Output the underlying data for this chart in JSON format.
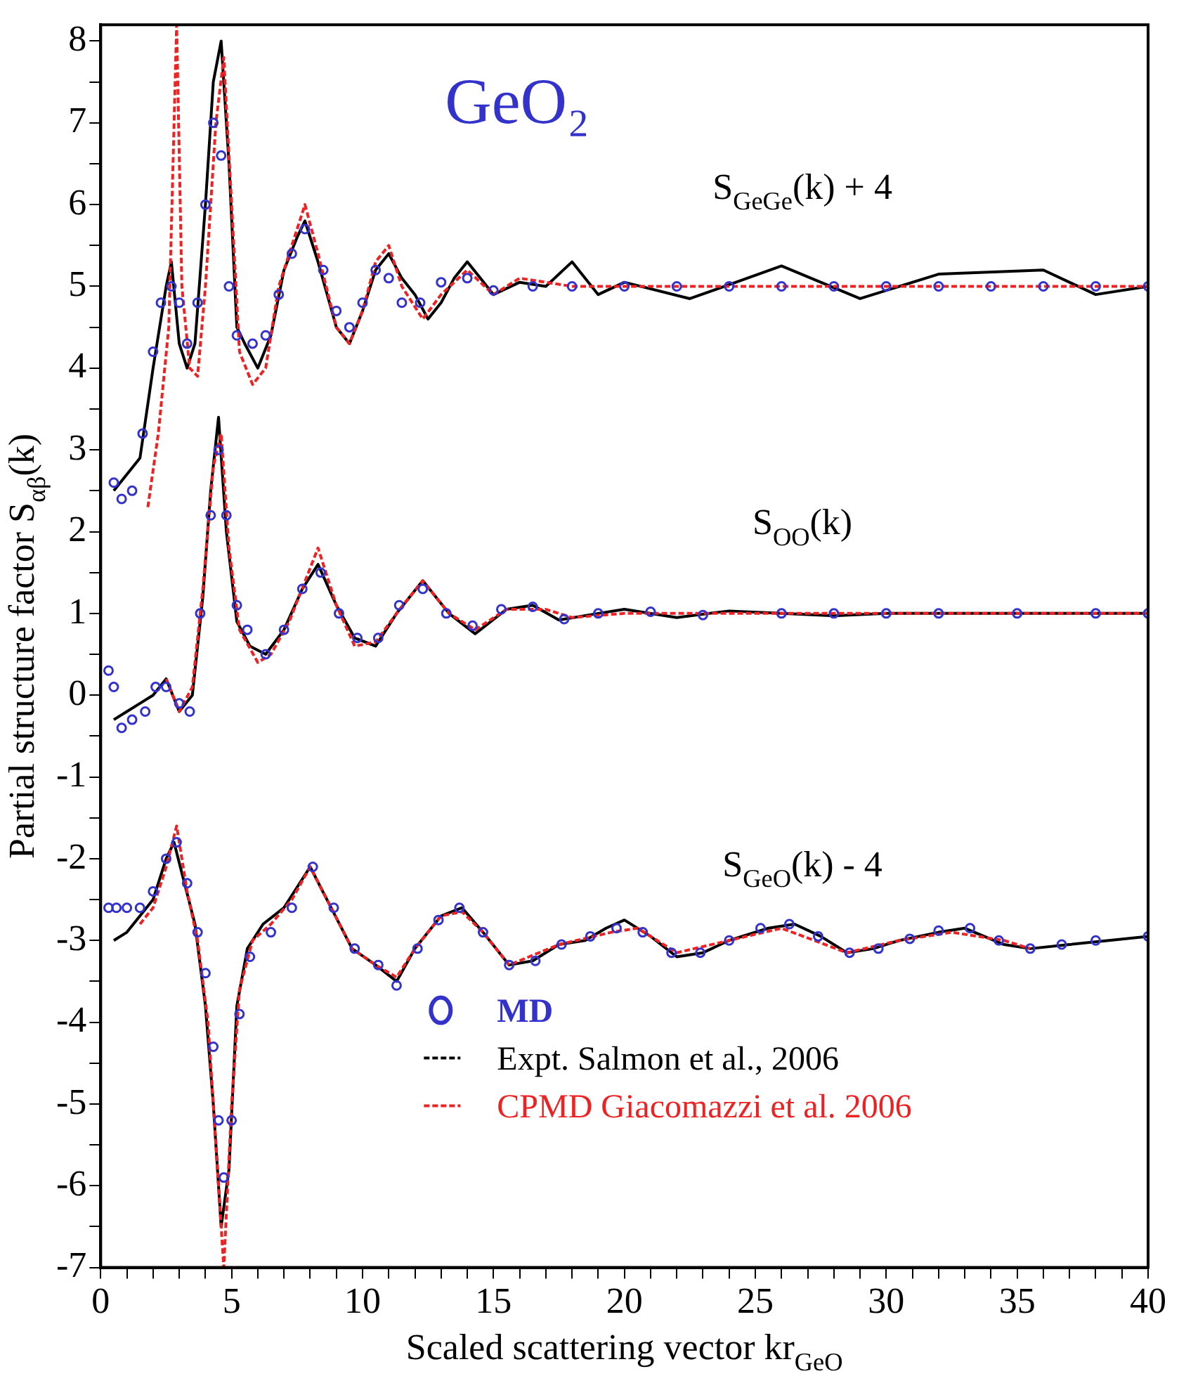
{
  "chart_data": {
    "type": "line",
    "title": "GeO₂",
    "xlabel": "Scaled scattering vector kr$_{GeO}$",
    "ylabel": "Partial structure factor S$_{αβ}$(k)",
    "xlim": [
      0,
      40
    ],
    "ylim": [
      -7,
      8.2
    ],
    "xticks": [
      0,
      {
        "value": 1,
        "label": null
      },
      {
        "value": 2,
        "label": null
      },
      {
        "value": 3,
        "label": null
      },
      {
        "value": 4,
        "label": null
      },
      5,
      {
        "value": 6,
        "label": null
      },
      {
        "value": 7,
        "label": null
      },
      {
        "value": 8,
        "label": null
      },
      {
        "value": 9,
        "label": null
      },
      10,
      {
        "value": 11,
        "label": null
      },
      {
        "value": 12,
        "label": null
      },
      {
        "value": 13,
        "label": null
      },
      {
        "value": 14,
        "label": null
      },
      15,
      {
        "value": 16,
        "label": null
      },
      {
        "value": 17,
        "label": null
      },
      {
        "value": 18,
        "label": null
      },
      {
        "value": 19,
        "label": null
      },
      20,
      {
        "value": 21,
        "label": null
      },
      {
        "value": 22,
        "label": null
      },
      {
        "value": 23,
        "label": null
      },
      {
        "value": 24,
        "label": null
      },
      25,
      {
        "value": 26,
        "label": null
      },
      {
        "value": 27,
        "label": null
      },
      {
        "value": 28,
        "label": null
      },
      {
        "value": 29,
        "label": null
      },
      30,
      {
        "value": 31,
        "label": null
      },
      {
        "value": 32,
        "label": null
      },
      {
        "value": 33,
        "label": null
      },
      {
        "value": 34,
        "label": null
      },
      35,
      {
        "value": 36,
        "label": null
      },
      {
        "value": 37,
        "label": null
      },
      {
        "value": 38,
        "label": null
      },
      {
        "value": 39,
        "label": null
      },
      40
    ],
    "yticks": [
      -7,
      {
        "value": -6.5,
        "label": null
      },
      -6,
      {
        "value": -5.5,
        "label": null
      },
      -5,
      {
        "value": -4.5,
        "label": null
      },
      -4,
      {
        "value": -3.5,
        "label": null
      },
      -3,
      {
        "value": -2.5,
        "label": null
      },
      -2,
      {
        "value": -1.5,
        "label": null
      },
      -1,
      {
        "value": -0.5,
        "label": null
      },
      0,
      {
        "value": 0.5,
        "label": null
      },
      1,
      {
        "value": 1.5,
        "label": null
      },
      2,
      {
        "value": 2.5,
        "label": null
      },
      3,
      {
        "value": 3.5,
        "label": null
      },
      4,
      {
        "value": 4.5,
        "label": null
      },
      5,
      {
        "value": 5.5,
        "label": null
      },
      6,
      {
        "value": 6.5,
        "label": null
      },
      7,
      {
        "value": 7.5,
        "label": null
      },
      8
    ],
    "grid": false,
    "legend": "bottom",
    "annotations": [
      "S$_{GeGe}$(k) + 4",
      "S$_{OO}$(k)",
      "S$_{GeO}$(k) - 4"
    ],
    "series": [
      {
        "name": "MD",
        "type": "scatter",
        "marker": "circle",
        "color": "#3333cc",
        "x": [
          0.5,
          0.8,
          1.2,
          1.6,
          2.0,
          2.3,
          2.7,
          3.0,
          3.3,
          3.7,
          4.0,
          4.3,
          4.6,
          4.9,
          5.2,
          5.8,
          6.3,
          6.8,
          7.3,
          7.8,
          8.5,
          9.0,
          9.5,
          10,
          10.5,
          11,
          11.5,
          12.2,
          13,
          14,
          15,
          16.5,
          18,
          20,
          22,
          24,
          26,
          28,
          30,
          32,
          34,
          36,
          38,
          40
        ],
        "values": [
          2.6,
          2.4,
          2.5,
          3.2,
          4.2,
          4.8,
          5.0,
          4.8,
          4.3,
          4.8,
          6.0,
          7.0,
          6.6,
          5.0,
          4.4,
          4.3,
          4.4,
          4.9,
          5.4,
          5.7,
          5.2,
          4.7,
          4.5,
          4.8,
          5.2,
          5.1,
          4.8,
          4.8,
          5.05,
          5.1,
          4.95,
          5.0,
          5.0,
          5.0,
          5.0,
          5.0,
          5.0,
          5.0,
          5.0,
          5.0,
          5.0,
          5.0,
          5.0,
          5.0
        ]
      },
      {
        "name": "Expt. Salmon et al., 2006",
        "type": "line",
        "line_style": "solid",
        "color": "#000000",
        "x": [
          0.5,
          1,
          1.5,
          2,
          2.5,
          2.7,
          3.0,
          3.3,
          3.6,
          4.0,
          4.3,
          4.6,
          4.9,
          5.2,
          5.5,
          6.0,
          6.5,
          7.0,
          7.5,
          7.8,
          8.3,
          9.0,
          9.5,
          10,
          10.5,
          11,
          11.5,
          12,
          12.5,
          13,
          13.5,
          14,
          14.5,
          15,
          16,
          17,
          18,
          19,
          20,
          22.5,
          26,
          29,
          32,
          36,
          38,
          40
        ],
        "values": [
          2.5,
          2.7,
          2.9,
          4.0,
          5.0,
          5.3,
          4.3,
          4.0,
          4.3,
          6.0,
          7.5,
          8.0,
          6.5,
          4.5,
          4.3,
          4.0,
          4.4,
          5.2,
          5.6,
          5.8,
          5.3,
          4.5,
          4.3,
          4.7,
          5.2,
          5.4,
          5.1,
          4.9,
          4.6,
          4.8,
          5.1,
          5.3,
          5.1,
          4.9,
          5.05,
          5.0,
          5.3,
          4.9,
          5.05,
          4.85,
          5.25,
          4.85,
          5.15,
          5.2,
          4.9,
          5.0
        ]
      },
      {
        "name": "CPMD Giacomazzi et al. 2006",
        "type": "line",
        "line_style": "dashed",
        "color": "#ee2222",
        "x": [
          1.8,
          2.2,
          2.6,
          2.9,
          3.1,
          3.4,
          3.7,
          4.0,
          4.4,
          4.7,
          5.0,
          5.3,
          5.8,
          6.3,
          6.8,
          7.3,
          7.8,
          8.3,
          9,
          9.5,
          10,
          10.5,
          11,
          11.5,
          12.3,
          13,
          14,
          15,
          16,
          18,
          20,
          25,
          30,
          35,
          40
        ],
        "values": [
          2.3,
          3.2,
          4.5,
          8.2,
          5.0,
          4.0,
          3.9,
          5.0,
          7.0,
          7.8,
          6.0,
          4.2,
          3.8,
          4.0,
          5.0,
          5.5,
          6.0,
          5.4,
          4.5,
          4.3,
          4.7,
          5.3,
          5.5,
          5.0,
          4.6,
          4.9,
          5.2,
          4.9,
          5.1,
          5.0,
          5.0,
          5.0,
          5.0,
          5.0,
          5.0
        ]
      },
      {
        "type": "scatter",
        "marker": "circle",
        "color": "#3333cc",
        "x": [
          0.3,
          0.5,
          0.8,
          1.2,
          1.7,
          2.1,
          2.5,
          3.0,
          3.4,
          3.8,
          4.2,
          4.5,
          4.8,
          5.2,
          5.6,
          6.3,
          7.0,
          7.7,
          8.4,
          9.1,
          9.8,
          10.6,
          11.4,
          12.3,
          13.2,
          14.2,
          15.3,
          16.5,
          17.7,
          19,
          21,
          23,
          26,
          28,
          30,
          32,
          35,
          38,
          40
        ],
        "values": [
          0.3,
          0.1,
          -0.4,
          -0.3,
          -0.2,
          0.1,
          0.1,
          -0.1,
          -0.2,
          1.0,
          2.2,
          3.0,
          2.2,
          1.1,
          0.8,
          0.5,
          0.8,
          1.3,
          1.5,
          1.0,
          0.7,
          0.7,
          1.1,
          1.3,
          1.0,
          0.85,
          1.05,
          1.08,
          0.93,
          1.0,
          1.02,
          0.98,
          1.0,
          1.0,
          1.0,
          1.0,
          1.0,
          1.0,
          1.0
        ]
      },
      {
        "type": "line",
        "line_style": "solid",
        "color": "#000000",
        "x": [
          0.5,
          1,
          1.5,
          2.0,
          2.5,
          3.0,
          3.5,
          3.9,
          4.2,
          4.5,
          4.8,
          5.2,
          5.7,
          6.3,
          7.0,
          7.7,
          8.3,
          9.0,
          9.7,
          10.5,
          11.3,
          12.3,
          13.3,
          14.3,
          15.5,
          16.5,
          17.5,
          19,
          20,
          22,
          24,
          26,
          28,
          30,
          33,
          36,
          40
        ],
        "values": [
          -0.3,
          -0.2,
          -0.1,
          0.0,
          0.2,
          -0.2,
          0.0,
          1.2,
          2.5,
          3.4,
          2.0,
          0.9,
          0.6,
          0.5,
          0.8,
          1.3,
          1.6,
          1.1,
          0.7,
          0.6,
          1.0,
          1.4,
          1.0,
          0.75,
          1.05,
          1.1,
          0.92,
          1.0,
          1.05,
          0.95,
          1.03,
          1.0,
          0.97,
          1.0,
          1.0,
          1.0,
          1.0
        ]
      },
      {
        "type": "line",
        "line_style": "dashed",
        "color": "#ee2222",
        "x": [
          2.5,
          3.0,
          3.5,
          3.9,
          4.3,
          4.6,
          4.9,
          5.3,
          6.0,
          6.5,
          7.2,
          8.3,
          9,
          9.7,
          10.5,
          11.3,
          12.3,
          13.3,
          14.3,
          15.5,
          17,
          18,
          20,
          25,
          30,
          35,
          40
        ],
        "values": [
          0.2,
          -0.2,
          0.1,
          1.3,
          2.8,
          3.2,
          1.8,
          0.8,
          0.4,
          0.5,
          0.9,
          1.8,
          1.1,
          0.6,
          0.65,
          1.0,
          1.4,
          1.0,
          0.8,
          1.05,
          1.05,
          0.95,
          1.0,
          1.0,
          1.0,
          1.0,
          1.0
        ]
      },
      {
        "type": "scatter",
        "marker": "circle",
        "color": "#3333cc",
        "x": [
          0.3,
          0.6,
          1.0,
          1.5,
          2.0,
          2.5,
          2.9,
          3.3,
          3.7,
          4.0,
          4.3,
          4.5,
          4.7,
          5.0,
          5.3,
          5.7,
          6.5,
          7.3,
          8.1,
          8.9,
          9.7,
          10.6,
          11.3,
          12.1,
          12.9,
          13.7,
          14.6,
          15.6,
          16.6,
          17.6,
          18.7,
          19.7,
          20.7,
          21.8,
          22.9,
          24,
          25.2,
          26.3,
          27.4,
          28.6,
          29.7,
          30.9,
          32,
          33.2,
          34.3,
          35.5,
          36.7,
          38,
          40
        ],
        "values": [
          -2.6,
          -2.6,
          -2.6,
          -2.6,
          -2.4,
          -2.0,
          -1.8,
          -2.3,
          -2.9,
          -3.4,
          -4.3,
          -5.2,
          -5.9,
          -5.2,
          -3.9,
          -3.2,
          -2.9,
          -2.6,
          -2.1,
          -2.6,
          -3.1,
          -3.3,
          -3.55,
          -3.1,
          -2.75,
          -2.6,
          -2.9,
          -3.3,
          -3.25,
          -3.05,
          -2.95,
          -2.85,
          -2.9,
          -3.15,
          -3.15,
          -3.0,
          -2.85,
          -2.8,
          -2.95,
          -3.15,
          -3.1,
          -2.98,
          -2.88,
          -2.85,
          -3.0,
          -3.1,
          -3.05,
          -3.0,
          -2.95
        ]
      },
      {
        "type": "line",
        "line_style": "solid",
        "color": "#000000",
        "x": [
          0.5,
          1.0,
          1.5,
          2.0,
          2.5,
          2.8,
          3.2,
          3.6,
          4.0,
          4.3,
          4.6,
          4.9,
          5.2,
          5.6,
          6.2,
          7.0,
          8.0,
          8.8,
          9.6,
          10.5,
          11.3,
          12,
          13,
          13.8,
          14.6,
          15.6,
          16.5,
          17.5,
          18.5,
          19.3,
          20,
          21,
          22,
          23,
          24,
          25.5,
          26.5,
          27.5,
          28.5,
          29.5,
          30.5,
          32,
          33,
          34.5,
          35.5,
          37,
          38.5,
          40
        ],
        "values": [
          -3.0,
          -2.9,
          -2.7,
          -2.5,
          -2.0,
          -1.8,
          -2.3,
          -2.8,
          -3.8,
          -5.0,
          -6.5,
          -5.8,
          -3.8,
          -3.1,
          -2.8,
          -2.6,
          -2.1,
          -2.6,
          -3.1,
          -3.3,
          -3.5,
          -3.1,
          -2.7,
          -2.6,
          -2.9,
          -3.3,
          -3.25,
          -3.05,
          -3.0,
          -2.85,
          -2.75,
          -2.95,
          -3.2,
          -3.15,
          -3.0,
          -2.85,
          -2.8,
          -2.95,
          -3.15,
          -3.1,
          -3.0,
          -2.9,
          -2.85,
          -3.05,
          -3.1,
          -3.05,
          -3.0,
          -2.95
        ]
      },
      {
        "type": "line",
        "line_style": "dashed",
        "color": "#ee2222",
        "x": [
          1.5,
          2.0,
          2.5,
          2.9,
          3.3,
          3.7,
          4.1,
          4.4,
          4.7,
          5.0,
          5.3,
          5.8,
          6.5,
          7.3,
          8.0,
          8.8,
          9.6,
          10.5,
          11.3,
          12,
          13,
          13.8,
          14.6,
          15.6,
          17.5,
          19.5,
          20.5,
          22,
          24,
          26,
          28.5,
          30.5,
          32.5,
          34.5,
          35.5
        ],
        "values": [
          -2.8,
          -2.6,
          -2.1,
          -1.6,
          -2.4,
          -3.0,
          -4.0,
          -5.5,
          -7.0,
          -5.0,
          -3.6,
          -3.0,
          -2.8,
          -2.5,
          -2.1,
          -2.6,
          -3.1,
          -3.3,
          -3.45,
          -3.1,
          -2.7,
          -2.65,
          -2.9,
          -3.3,
          -3.05,
          -2.9,
          -2.85,
          -3.15,
          -3.0,
          -2.85,
          -3.15,
          -3.0,
          -2.9,
          -3.0,
          -3.1
        ]
      }
    ]
  }
}
